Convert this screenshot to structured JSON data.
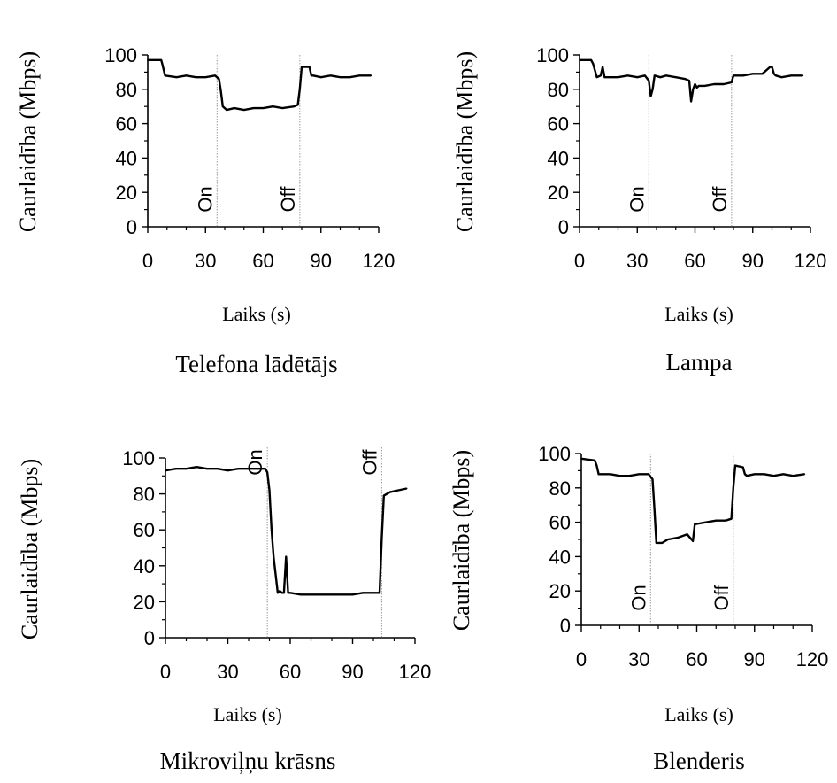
{
  "chart_data": [
    {
      "type": "line",
      "caption": "Telefona lādētājs",
      "xlabel": "Laiks (s)",
      "ylabel": "Caurlaidība (Mbps)",
      "xlim": [
        0,
        120
      ],
      "ylim": [
        0,
        100
      ],
      "xticks": [
        "0",
        "30",
        "60",
        "90",
        "120"
      ],
      "yticks": [
        "0",
        "20",
        "40",
        "60",
        "80",
        "100"
      ],
      "markers": [
        {
          "x": 36,
          "label": "On"
        },
        {
          "x": 79,
          "label": "Off"
        }
      ],
      "series": [
        {
          "x": [
            0,
            7,
            7.5,
            9,
            15,
            20,
            25,
            30,
            35,
            37,
            38,
            39,
            41,
            45,
            50,
            55,
            60,
            65,
            70,
            76,
            78,
            79,
            80,
            84,
            85,
            86,
            90,
            95,
            100,
            105,
            110,
            116
          ],
          "y": [
            97,
            97,
            95,
            88,
            87,
            88,
            87,
            87,
            88,
            86,
            79,
            70,
            68,
            69,
            68,
            69,
            69,
            70,
            69,
            70,
            71,
            80,
            93,
            93,
            88,
            88,
            87,
            88,
            87,
            87,
            88,
            88
          ]
        }
      ]
    },
    {
      "type": "line",
      "caption": "Lampa",
      "xlabel": "Laiks (s)",
      "ylabel": "Caurlaidība (Mbps)",
      "xlim": [
        0,
        120
      ],
      "ylim": [
        0,
        100
      ],
      "xticks": [
        "0",
        "30",
        "60",
        "90",
        "120"
      ],
      "yticks": [
        "0",
        "20",
        "40",
        "60",
        "80",
        "100"
      ],
      "markers": [
        {
          "x": 36,
          "label": "On"
        },
        {
          "x": 79,
          "label": "Off"
        }
      ],
      "series": [
        {
          "x": [
            0,
            6,
            7,
            9,
            11,
            12,
            13,
            15,
            20,
            25,
            30,
            34,
            36,
            37,
            38,
            39,
            42,
            45,
            50,
            55,
            57,
            58,
            59,
            60,
            61,
            62,
            65,
            70,
            75,
            79,
            80,
            85,
            90,
            95,
            99,
            100,
            101,
            102,
            105,
            110,
            116
          ],
          "y": [
            97,
            97,
            95,
            87,
            88,
            93,
            87,
            87,
            87,
            88,
            87,
            88,
            85,
            76,
            80,
            88,
            87,
            88,
            87,
            86,
            85,
            73,
            80,
            83,
            81,
            82,
            82,
            83,
            83,
            84,
            88,
            88,
            89,
            89,
            93,
            93,
            89,
            88,
            87,
            88,
            88
          ]
        }
      ]
    },
    {
      "type": "line",
      "caption": "Mikroviļņu krāsns",
      "xlabel": "Laiks (s)",
      "ylabel": "Caurlaidība (Mbps)",
      "xlim": [
        0,
        120
      ],
      "ylim": [
        0,
        100
      ],
      "xticks": [
        "0",
        "30",
        "60",
        "90",
        "120"
      ],
      "yticks": [
        "0",
        "20",
        "40",
        "60",
        "80",
        "100"
      ],
      "markers": [
        {
          "x": 49,
          "label": "On"
        },
        {
          "x": 104,
          "label": "Off"
        }
      ],
      "series": [
        {
          "x": [
            0,
            5,
            10,
            15,
            20,
            25,
            30,
            35,
            40,
            45,
            48,
            49,
            50,
            51,
            52,
            54,
            55,
            56,
            57,
            58,
            59,
            60,
            65,
            70,
            75,
            80,
            85,
            90,
            95,
            100,
            103,
            104,
            105,
            108,
            112,
            116
          ],
          "y": [
            93,
            94,
            94,
            95,
            94,
            94,
            93,
            94,
            94,
            94,
            94,
            92,
            82,
            60,
            45,
            25,
            26,
            25,
            25,
            45,
            25,
            25,
            24,
            24,
            24,
            24,
            24,
            24,
            25,
            25,
            25,
            55,
            79,
            81,
            82,
            83
          ]
        }
      ]
    },
    {
      "type": "line",
      "caption": "Blenderis",
      "xlabel": "Laiks (s)",
      "ylabel": "Caurlaidība (Mbps)",
      "xlim": [
        0,
        120
      ],
      "ylim": [
        0,
        100
      ],
      "xticks": [
        "0",
        "30",
        "60",
        "90",
        "120"
      ],
      "yticks": [
        "0",
        "20",
        "40",
        "60",
        "80",
        "100"
      ],
      "markers": [
        {
          "x": 36,
          "label": "On"
        },
        {
          "x": 79,
          "label": "Off"
        }
      ],
      "series": [
        {
          "x": [
            0,
            7,
            8,
            9,
            15,
            20,
            25,
            30,
            35,
            37,
            38,
            39,
            42,
            45,
            50,
            55,
            58,
            59,
            60,
            65,
            70,
            75,
            78,
            79,
            80,
            84,
            85,
            86,
            90,
            95,
            100,
            105,
            110,
            116
          ],
          "y": [
            97,
            96,
            93,
            88,
            88,
            87,
            87,
            88,
            88,
            85,
            68,
            48,
            48,
            50,
            51,
            53,
            49,
            59,
            59,
            60,
            61,
            61,
            62,
            80,
            93,
            92,
            88,
            87,
            88,
            88,
            87,
            88,
            87,
            88
          ]
        }
      ]
    }
  ]
}
